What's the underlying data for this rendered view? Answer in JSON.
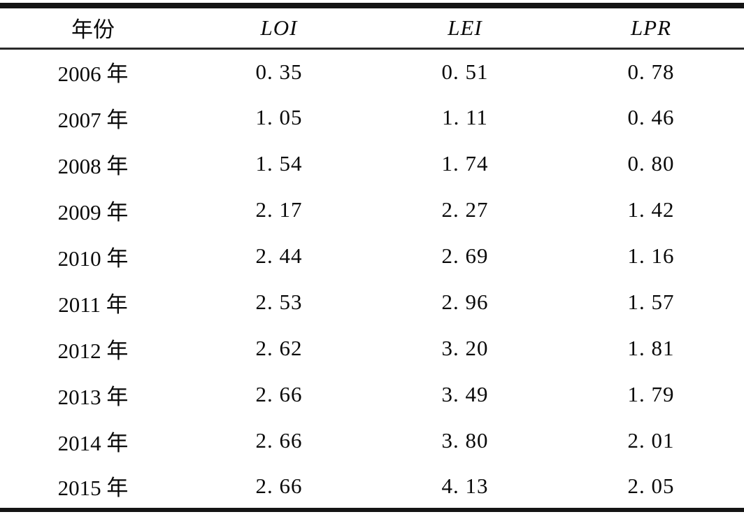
{
  "table": {
    "columns": [
      "年份",
      "LOI",
      "LEI",
      "LPR"
    ],
    "rows": [
      {
        "year": "2006 年",
        "loi": "0. 35",
        "lei": "0. 51",
        "lpr": "0. 78"
      },
      {
        "year": "2007 年",
        "loi": "1. 05",
        "lei": "1. 11",
        "lpr": "0. 46"
      },
      {
        "year": "2008 年",
        "loi": "1. 54",
        "lei": "1. 74",
        "lpr": "0. 80"
      },
      {
        "year": "2009 年",
        "loi": "2. 17",
        "lei": "2. 27",
        "lpr": "1. 42"
      },
      {
        "year": "2010 年",
        "loi": "2. 44",
        "lei": "2. 69",
        "lpr": "1. 16"
      },
      {
        "year": "2011 年",
        "loi": "2. 53",
        "lei": "2. 96",
        "lpr": "1. 57"
      },
      {
        "year": "2012 年",
        "loi": "2. 62",
        "lei": "3. 20",
        "lpr": "1. 81"
      },
      {
        "year": "2013 年",
        "loi": "2. 66",
        "lei": "3. 49",
        "lpr": "1. 79"
      },
      {
        "year": "2014 年",
        "loi": "2. 66",
        "lei": "3. 80",
        "lpr": "2. 01"
      },
      {
        "year": "2015 年",
        "loi": "2. 66",
        "lei": "4. 13",
        "lpr": "2. 05"
      }
    ]
  },
  "chart_data": {
    "type": "table",
    "title": "",
    "columns": [
      "年份",
      "LOI",
      "LEI",
      "LPR"
    ],
    "categories": [
      "2006",
      "2007",
      "2008",
      "2009",
      "2010",
      "2011",
      "2012",
      "2013",
      "2014",
      "2015"
    ],
    "series": [
      {
        "name": "LOI",
        "values": [
          0.35,
          1.05,
          1.54,
          2.17,
          2.44,
          2.53,
          2.62,
          2.66,
          2.66,
          2.66
        ]
      },
      {
        "name": "LEI",
        "values": [
          0.51,
          1.11,
          1.74,
          2.27,
          2.69,
          2.96,
          3.2,
          3.49,
          3.8,
          4.13
        ]
      },
      {
        "name": "LPR",
        "values": [
          0.78,
          0.46,
          0.8,
          1.42,
          1.16,
          1.57,
          1.81,
          1.79,
          2.01,
          2.05
        ]
      }
    ]
  },
  "colors": {
    "background": "#ffffff",
    "text": "#0a0a0a",
    "rule": "#141414"
  }
}
